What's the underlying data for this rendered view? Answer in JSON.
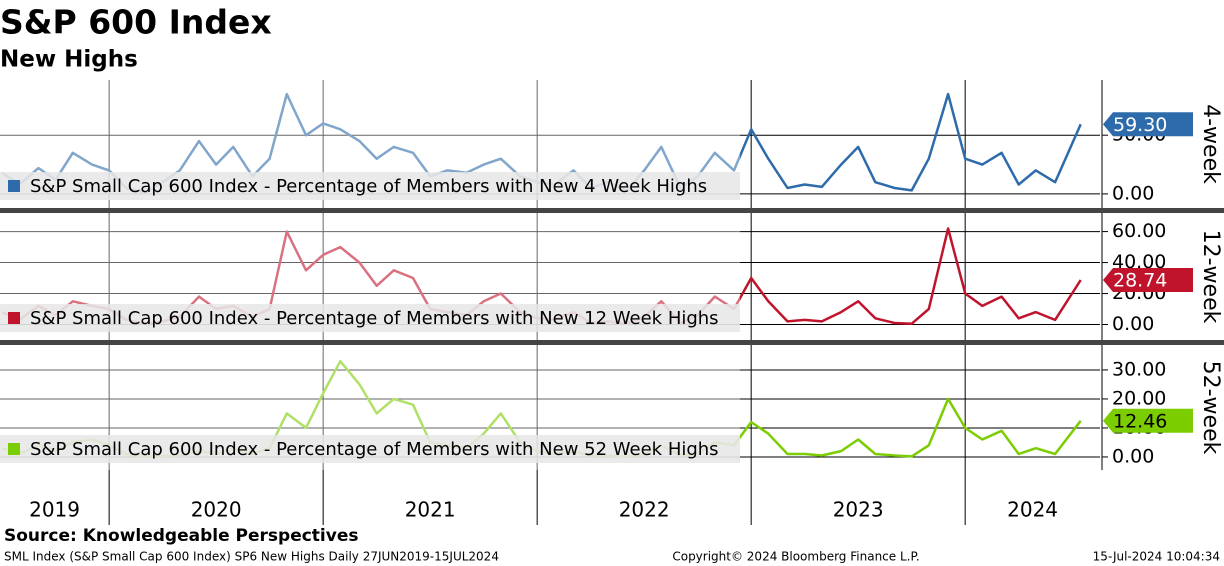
{
  "title": "S&P 600 Index",
  "subtitle": "New Highs",
  "source": "Source: Knowledgeable Perspectives",
  "footer": {
    "left": "SML Index (S&P Small Cap 600 Index) SP6 New Highs  Daily 27JUN2019-15JUL2024",
    "center": "Copyright© 2024 Bloomberg Finance L.P.",
    "right": "15-Jul-2024 10:04:34"
  },
  "chart_data": [
    {
      "type": "line",
      "axis_label": "4-week",
      "xlim": [
        2019.49,
        2024.63
      ],
      "xgrid": [
        2020,
        2021,
        2022,
        2023,
        2024
      ],
      "ylim": [
        -12,
        97
      ],
      "yticks": [
        {
          "value": 0,
          "label": "0.00"
        },
        {
          "value": 50,
          "label": "50.00"
        }
      ],
      "x": [
        2019.5,
        2019.58,
        2019.67,
        2019.75,
        2019.83,
        2019.92,
        2020,
        2020.08,
        2020.17,
        2020.25,
        2020.33,
        2020.42,
        2020.5,
        2020.58,
        2020.67,
        2020.75,
        2020.83,
        2020.92,
        2021,
        2021.08,
        2021.17,
        2021.25,
        2021.33,
        2021.42,
        2021.5,
        2021.58,
        2021.67,
        2021.75,
        2021.83,
        2021.92,
        2022,
        2022.08,
        2022.17,
        2022.25,
        2022.33,
        2022.42,
        2022.5,
        2022.58,
        2022.67,
        2022.75,
        2022.83,
        2022.92,
        2023,
        2023.08,
        2023.17,
        2023.25,
        2023.33,
        2023.42,
        2023.5,
        2023.58,
        2023.67,
        2023.75,
        2023.83,
        2023.92,
        2024,
        2024.08,
        2024.17,
        2024.25,
        2024.33,
        2024.42,
        2024.54
      ],
      "series": [
        {
          "name": "S&P Small Cap 600 Index - Percentage of Members with New 4 Week Highs",
          "color": "#2e6bab",
          "label_text_color": "#ffffff",
          "last_label": "59.30",
          "values": [
            18,
            8,
            22,
            12,
            35,
            25,
            20,
            5,
            1,
            10,
            20,
            45,
            25,
            40,
            15,
            30,
            85,
            50,
            60,
            55,
            45,
            30,
            40,
            35,
            15,
            20,
            18,
            25,
            30,
            15,
            10,
            8,
            20,
            5,
            10,
            3,
            20,
            40,
            5,
            15,
            35,
            20,
            55,
            30,
            5,
            8,
            6,
            25,
            40,
            10,
            5,
            3,
            30,
            85,
            30,
            25,
            35,
            8,
            20,
            10,
            59.3
          ]
        }
      ]
    },
    {
      "type": "line",
      "axis_label": "12-week",
      "xlim": [
        2019.49,
        2024.63
      ],
      "xgrid": [
        2020,
        2021,
        2022,
        2023,
        2024
      ],
      "ylim": [
        -10,
        72
      ],
      "yticks": [
        {
          "value": 0,
          "label": "0.00"
        },
        {
          "value": 20,
          "label": "20.00"
        },
        {
          "value": 40,
          "label": "40.00"
        },
        {
          "value": 60,
          "label": "60.00"
        }
      ],
      "x": [
        2019.5,
        2019.58,
        2019.67,
        2019.75,
        2019.83,
        2019.92,
        2020,
        2020.08,
        2020.17,
        2020.25,
        2020.33,
        2020.42,
        2020.5,
        2020.58,
        2020.67,
        2020.75,
        2020.83,
        2020.92,
        2021,
        2021.08,
        2021.17,
        2021.25,
        2021.33,
        2021.42,
        2021.5,
        2021.58,
        2021.67,
        2021.75,
        2021.83,
        2021.92,
        2022,
        2022.08,
        2022.17,
        2022.25,
        2022.33,
        2022.42,
        2022.5,
        2022.58,
        2022.67,
        2022.75,
        2022.83,
        2022.92,
        2023,
        2023.08,
        2023.17,
        2023.25,
        2023.33,
        2023.42,
        2023.5,
        2023.58,
        2023.67,
        2023.75,
        2023.83,
        2023.92,
        2024,
        2024.08,
        2024.17,
        2024.25,
        2024.33,
        2024.42,
        2024.54
      ],
      "series": [
        {
          "name": "S&P Small Cap 600 Index - Percentage of Members with New 12 Week Highs",
          "color": "#c0142c",
          "label_text_color": "#ffffff",
          "last_label": "28.74",
          "values": [
            8,
            3,
            12,
            6,
            15,
            12,
            10,
            3,
            0.5,
            2,
            5,
            18,
            10,
            12,
            5,
            10,
            60,
            35,
            45,
            50,
            40,
            25,
            35,
            30,
            10,
            8,
            6,
            15,
            20,
            8,
            4,
            3,
            8,
            1,
            2,
            0.5,
            5,
            15,
            1,
            6,
            18,
            10,
            30,
            15,
            2,
            3,
            2,
            8,
            15,
            4,
            1,
            0.5,
            10,
            62,
            20,
            12,
            18,
            4,
            8,
            3,
            28.74
          ]
        }
      ]
    },
    {
      "type": "line",
      "axis_label": "52-week",
      "xlim": [
        2019.49,
        2024.63
      ],
      "xgrid": [
        2020,
        2021,
        2022,
        2023,
        2024
      ],
      "period_labels": [
        "2019",
        "2020",
        "2021",
        "2022",
        "2023",
        "2024"
      ],
      "ylim": [
        -4.5,
        38.6
      ],
      "yticks": [
        {
          "value": 0,
          "label": "0.00"
        },
        {
          "value": 10,
          "label": "10.00"
        },
        {
          "value": 20,
          "label": "20.00"
        },
        {
          "value": 30,
          "label": "30.00"
        }
      ],
      "x": [
        2019.5,
        2019.58,
        2019.67,
        2019.75,
        2019.83,
        2019.92,
        2020,
        2020.08,
        2020.17,
        2020.25,
        2020.33,
        2020.42,
        2020.5,
        2020.58,
        2020.67,
        2020.75,
        2020.83,
        2020.92,
        2021,
        2021.08,
        2021.17,
        2021.25,
        2021.33,
        2021.42,
        2021.5,
        2021.58,
        2021.67,
        2021.75,
        2021.83,
        2021.92,
        2022,
        2022.08,
        2022.17,
        2022.25,
        2022.33,
        2022.42,
        2022.5,
        2022.58,
        2022.67,
        2022.75,
        2022.83,
        2022.92,
        2023,
        2023.08,
        2023.17,
        2023.25,
        2023.33,
        2023.42,
        2023.5,
        2023.58,
        2023.67,
        2023.75,
        2023.83,
        2023.92,
        2024,
        2024.08,
        2024.17,
        2024.25,
        2024.33,
        2024.42,
        2024.54
      ],
      "series": [
        {
          "name": "S&P Small Cap 600 Index - Percentage of Members with New 52 Week Highs",
          "color": "#7ccd00",
          "label_text_color": "#000000",
          "last_label": "12.46",
          "values": [
            3,
            1,
            4,
            2,
            5,
            6,
            4,
            1,
            0,
            0.3,
            0.5,
            2,
            1,
            3,
            1,
            3,
            15,
            10,
            22,
            33,
            25,
            15,
            20,
            18,
            5,
            4,
            3,
            8,
            15,
            5,
            2,
            1,
            2,
            0.5,
            0.5,
            0.1,
            1,
            4,
            0.5,
            1,
            5,
            4,
            12,
            8,
            1,
            1,
            0.5,
            2,
            6,
            1,
            0.5,
            0.2,
            4,
            20,
            10,
            6,
            9,
            1,
            3,
            1,
            12.46
          ]
        }
      ]
    }
  ]
}
